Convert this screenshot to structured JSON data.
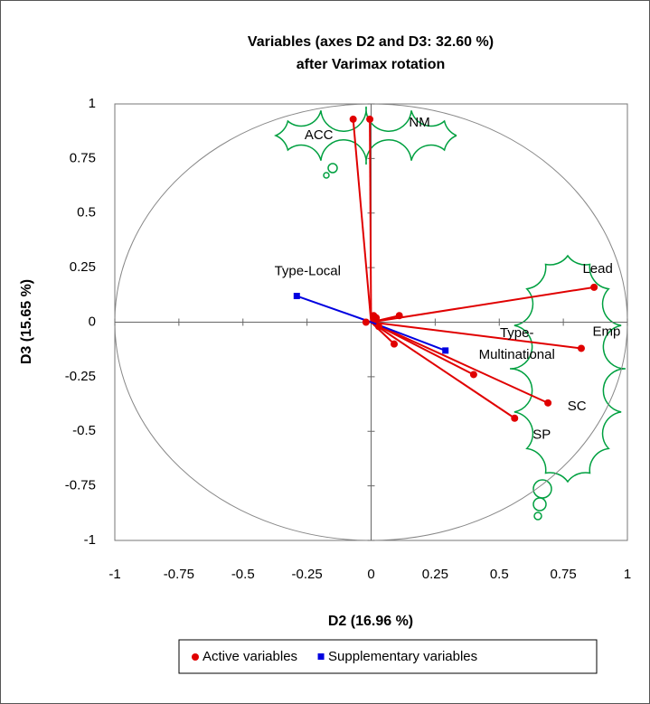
{
  "chart_data": {
    "type": "correlation-circle",
    "title": [
      "Variables (axes D2 and D3: 32.60 %)",
      "after Varimax rotation"
    ],
    "xlabel": "D2 (16.96 %)",
    "ylabel": "D3 (15.65 %)",
    "xlim": [
      -1,
      1
    ],
    "ylim": [
      -1,
      1
    ],
    "xticks": [
      -1,
      -0.75,
      -0.5,
      -0.25,
      0,
      0.25,
      0.5,
      0.75,
      1
    ],
    "yticks": [
      -1,
      -0.75,
      -0.5,
      -0.25,
      0,
      0.25,
      0.5,
      0.75,
      1
    ],
    "series": [
      {
        "name": "Active variables",
        "color": "#e00000",
        "marker": "circle",
        "x": [
          -0.07,
          -0.005,
          0.87,
          0.82,
          0.69,
          0.56,
          0.4,
          0.09,
          0.11,
          0.02,
          0.03,
          -0.02,
          0.01
        ],
        "y": [
          0.93,
          0.93,
          0.16,
          -0.12,
          -0.37,
          -0.44,
          -0.24,
          -0.1,
          0.03,
          0.02,
          -0.02,
          0.0,
          0.03
        ],
        "labels": [
          "ACC",
          "NM",
          "Lead",
          "Emp",
          "SC",
          "SP",
          null,
          null,
          null,
          null,
          null,
          null,
          null
        ]
      },
      {
        "name": "Supplementary variables",
        "color": "#0000e0",
        "marker": "square",
        "x": [
          -0.29,
          0.29
        ],
        "y": [
          0.12,
          -0.13
        ],
        "labels": [
          "Type-Local",
          "Type-Multinational"
        ]
      }
    ]
  }
}
